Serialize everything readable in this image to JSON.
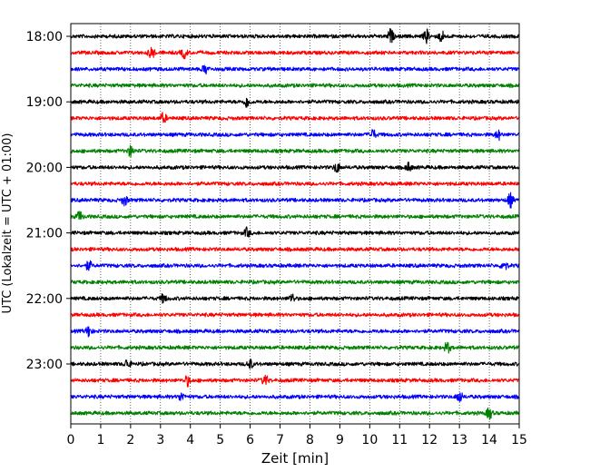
{
  "chart_data": {
    "type": "line",
    "xlabel": "Zeit  [min]",
    "ylabel": "UTC (Lokalzeit = UTC + 01:00)",
    "xlim": [
      0,
      15
    ],
    "x_ticks": [
      "0",
      "1",
      "2",
      "3",
      "4",
      "5",
      "6",
      "7",
      "8",
      "9",
      "10",
      "11",
      "12",
      "13",
      "14",
      "15"
    ],
    "y_ticks": [
      "18:00",
      "19:00",
      "20:00",
      "21:00",
      "22:00",
      "23:00"
    ],
    "grid": "vertical dotted lines at every minute",
    "rows_per_hour": 4,
    "row_minutes": 15,
    "trace_colors": [
      "#000000",
      "#ff0000",
      "#0000ff",
      "#008000"
    ],
    "traces": [
      {
        "start": "18:00",
        "events": [
          [
            10.7,
            1.6
          ],
          [
            11.9,
            1.5
          ],
          [
            12.4,
            1.3
          ]
        ]
      },
      {
        "start": "18:15",
        "events": [
          [
            2.7,
            1.4
          ],
          [
            3.8,
            1.2
          ]
        ]
      },
      {
        "start": "18:30",
        "events": [
          [
            4.5,
            1.1
          ]
        ]
      },
      {
        "start": "18:45",
        "events": []
      },
      {
        "start": "19:00",
        "events": [
          [
            5.9,
            1.3
          ]
        ]
      },
      {
        "start": "19:15",
        "events": [
          [
            3.1,
            1.2
          ]
        ]
      },
      {
        "start": "19:30",
        "events": [
          [
            10.1,
            1.2
          ],
          [
            14.3,
            1.1
          ]
        ]
      },
      {
        "start": "19:45",
        "events": [
          [
            2.0,
            1.2
          ]
        ]
      },
      {
        "start": "20:00",
        "events": [
          [
            8.9,
            1.2
          ],
          [
            11.3,
            1.0
          ]
        ]
      },
      {
        "start": "20:15",
        "events": []
      },
      {
        "start": "20:30",
        "events": [
          [
            1.8,
            1.2
          ],
          [
            14.7,
            1.6
          ]
        ]
      },
      {
        "start": "20:45",
        "events": [
          [
            0.3,
            1.2
          ]
        ]
      },
      {
        "start": "21:00",
        "events": [
          [
            5.9,
            1.1
          ]
        ]
      },
      {
        "start": "21:15",
        "events": []
      },
      {
        "start": "21:30",
        "events": [
          [
            0.6,
            1.1
          ],
          [
            14.5,
            1.2
          ]
        ]
      },
      {
        "start": "21:45",
        "events": []
      },
      {
        "start": "22:00",
        "events": [
          [
            3.1,
            1.0
          ],
          [
            7.4,
            1.0
          ]
        ]
      },
      {
        "start": "22:15",
        "events": []
      },
      {
        "start": "22:30",
        "events": [
          [
            0.6,
            1.3
          ]
        ]
      },
      {
        "start": "22:45",
        "events": [
          [
            12.6,
            1.3
          ]
        ]
      },
      {
        "start": "23:00",
        "events": [
          [
            1.9,
            1.2
          ],
          [
            6.0,
            1.1
          ]
        ]
      },
      {
        "start": "23:15",
        "events": [
          [
            3.9,
            1.2
          ],
          [
            6.5,
            1.3
          ]
        ]
      },
      {
        "start": "23:30",
        "events": [
          [
            3.7,
            1.0
          ],
          [
            13.0,
            1.3
          ]
        ]
      },
      {
        "start": "23:45",
        "events": [
          [
            14.0,
            1.3
          ]
        ]
      }
    ]
  }
}
